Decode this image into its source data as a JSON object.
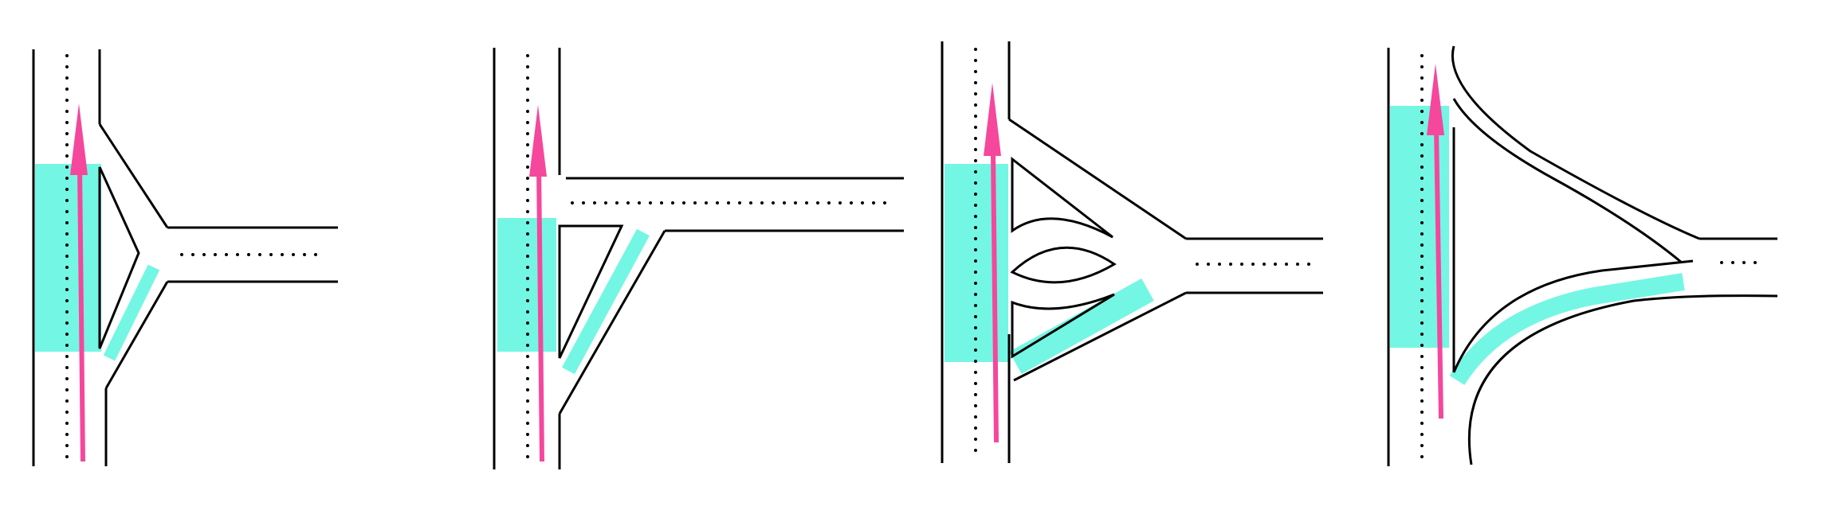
{
  "colors": {
    "road": "#000000",
    "highlight": "#74F6E4",
    "arrow": "#F5479C",
    "background": "#FFFFFF"
  },
  "diagram": {
    "panel_count": 4,
    "panels": [
      {
        "id": "panel-1",
        "variant": "y-junction-with-triangular-island"
      },
      {
        "id": "panel-2",
        "variant": "t-junction-with-slip-lane"
      },
      {
        "id": "panel-3",
        "variant": "y-junction-with-multiple-islands"
      },
      {
        "id": "panel-4",
        "variant": "y-junction-with-curved-ramps"
      }
    ]
  }
}
